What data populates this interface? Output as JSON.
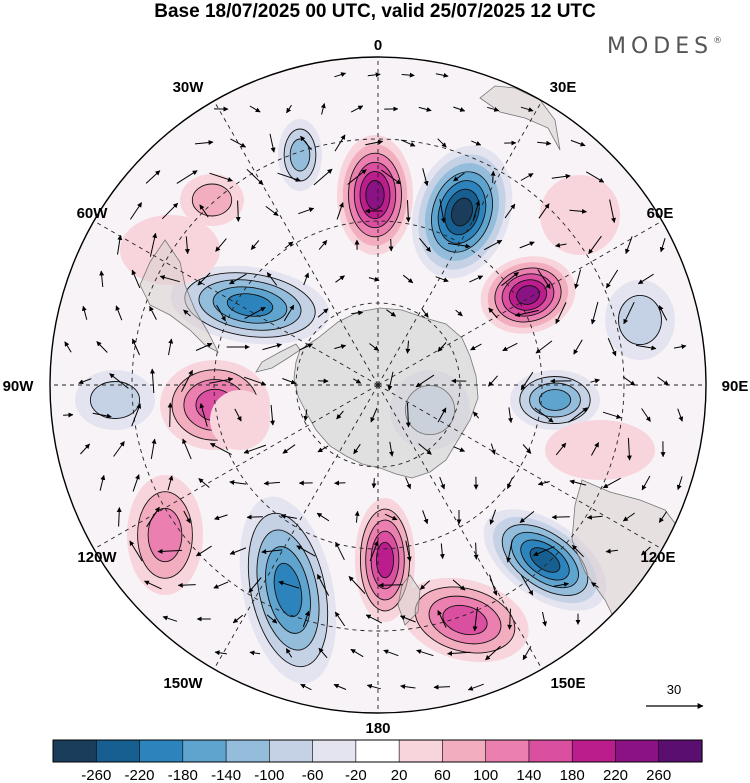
{
  "title": "Base 18/07/2025 00 UTC, valid 25/07/2025 12 UTC",
  "brand": "MODES",
  "brand_mark": "®",
  "map": {
    "projection": "south-polar-stereographic",
    "longitude_labels": [
      "0",
      "30E",
      "60E",
      "90E",
      "120E",
      "150E",
      "180",
      "150W",
      "120W",
      "90W",
      "60W",
      "30W"
    ],
    "vector_reference_label": "30"
  },
  "colorbar": {
    "labels": [
      "-260",
      "-220",
      "-180",
      "-140",
      "-100",
      "-60",
      "-20",
      "20",
      "60",
      "100",
      "140",
      "180",
      "220",
      "260"
    ],
    "colors": [
      "#1a3d5c",
      "#175f91",
      "#2d84bd",
      "#5ea4cf",
      "#94bddc",
      "#c5d2e6",
      "#e4e3f0",
      "#ffffff",
      "#f8d4dc",
      "#f2aebf",
      "#ea7fb0",
      "#da4fa0",
      "#bc1d8d",
      "#8b1284",
      "#5a0f70"
    ]
  }
}
